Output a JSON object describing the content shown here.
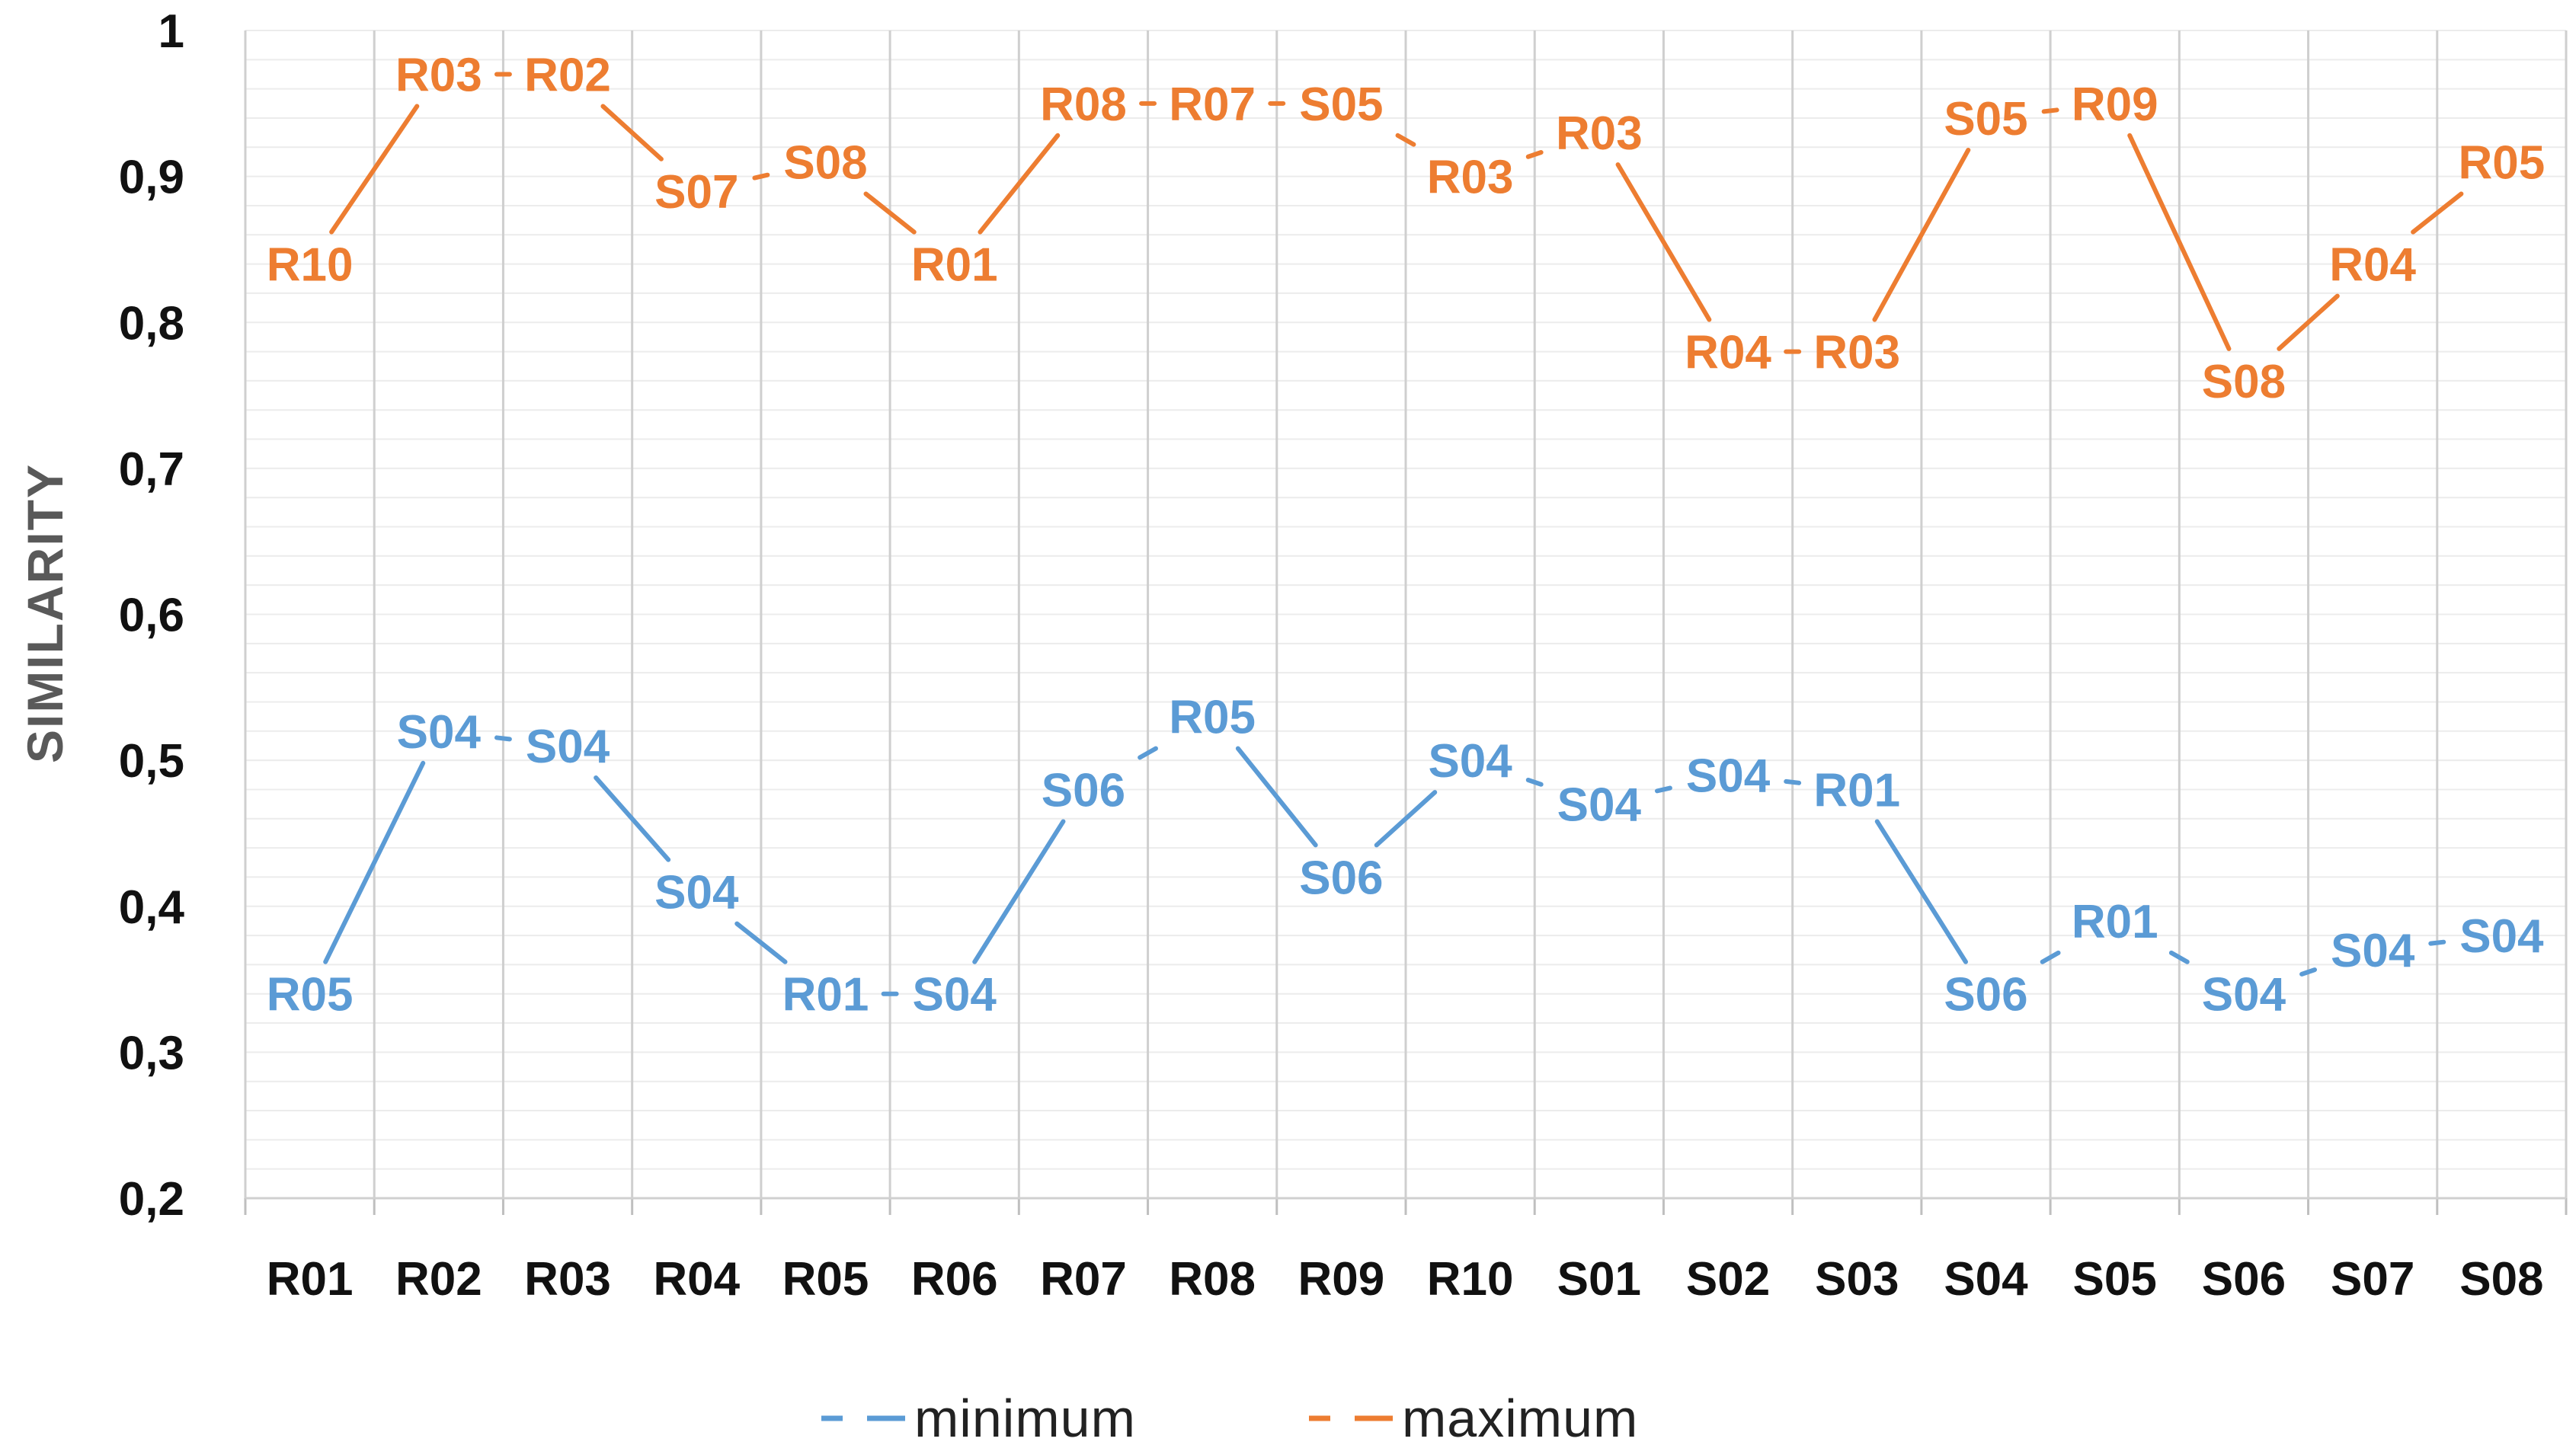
{
  "chart_data": {
    "type": "line",
    "ylabel": "SIMILARITY",
    "xlabel": "",
    "ylim": [
      0.2,
      1.0
    ],
    "y_ticks": [
      "0,2",
      "0,3",
      "0,4",
      "0,5",
      "0,6",
      "0,7",
      "0,8",
      "0,9",
      "1"
    ],
    "y_tick_values": [
      0.2,
      0.3,
      0.4,
      0.5,
      0.6,
      0.7,
      0.8,
      0.9,
      1.0
    ],
    "grid": "vertical gridlines per category, horizontal minor gridlines",
    "legend_position": "bottom",
    "categories": [
      "R01",
      "R02",
      "R03",
      "R04",
      "R05",
      "R06",
      "R07",
      "R08",
      "R09",
      "R10",
      "S01",
      "S02",
      "S03",
      "S04",
      "S05",
      "S06",
      "S07",
      "S08"
    ],
    "series": [
      {
        "name": "minimum",
        "color": "#5B9BD5",
        "values": [
          0.34,
          0.52,
          0.51,
          0.41,
          0.34,
          0.34,
          0.48,
          0.53,
          0.42,
          0.5,
          0.47,
          0.49,
          0.48,
          0.34,
          0.39,
          0.34,
          0.37,
          0.38
        ],
        "point_labels": [
          "R05",
          "S04",
          "S04",
          "S04",
          "R01",
          "S04",
          "S06",
          "R05",
          "S06",
          "S04",
          "S04",
          "S04",
          "R01",
          "S06",
          "R01",
          "S04",
          "S04",
          "S04"
        ]
      },
      {
        "name": "maximum",
        "color": "#ED7D31",
        "values": [
          0.84,
          0.97,
          0.97,
          0.89,
          0.91,
          0.84,
          0.95,
          0.95,
          0.95,
          0.9,
          0.93,
          0.78,
          0.78,
          0.94,
          0.95,
          0.76,
          0.84,
          0.91
        ],
        "point_labels": [
          "R10",
          "R03",
          "R02",
          "S07",
          "S08",
          "R01",
          "R08",
          "R07",
          "S05",
          "R03",
          "R03",
          "R04",
          "R03",
          "S05",
          "R09",
          "S08",
          "R04",
          "R05"
        ]
      }
    ]
  }
}
